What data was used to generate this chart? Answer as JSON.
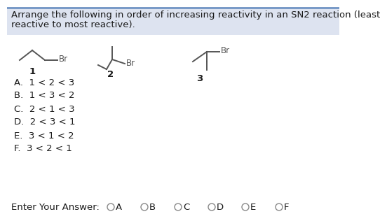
{
  "title_line1": "Arrange the following in order of increasing reactivity in an SN2 reaction (least",
  "title_line2": "reactive to most reactive).",
  "options": [
    "A.  1 < 2 < 3",
    "B.  1 < 3 < 2",
    "C.  2 < 1 < 3",
    "D.  2 < 3 < 1",
    "E.  3 < 1 < 2",
    "F.  3 < 2 < 1"
  ],
  "answer_labels": [
    "A",
    "B",
    "C",
    "D",
    "E",
    "F"
  ],
  "bg_color": "#ffffff",
  "header_bg": "#dde3f0",
  "text_color": "#1a1a1a",
  "header_text_color": "#1a1a1a",
  "mol_color": "#555555",
  "font_size_title": 9.5,
  "font_size_options": 9.5,
  "font_size_answer": 9.5,
  "font_size_mol": 8.5,
  "font_size_label": 9.5
}
